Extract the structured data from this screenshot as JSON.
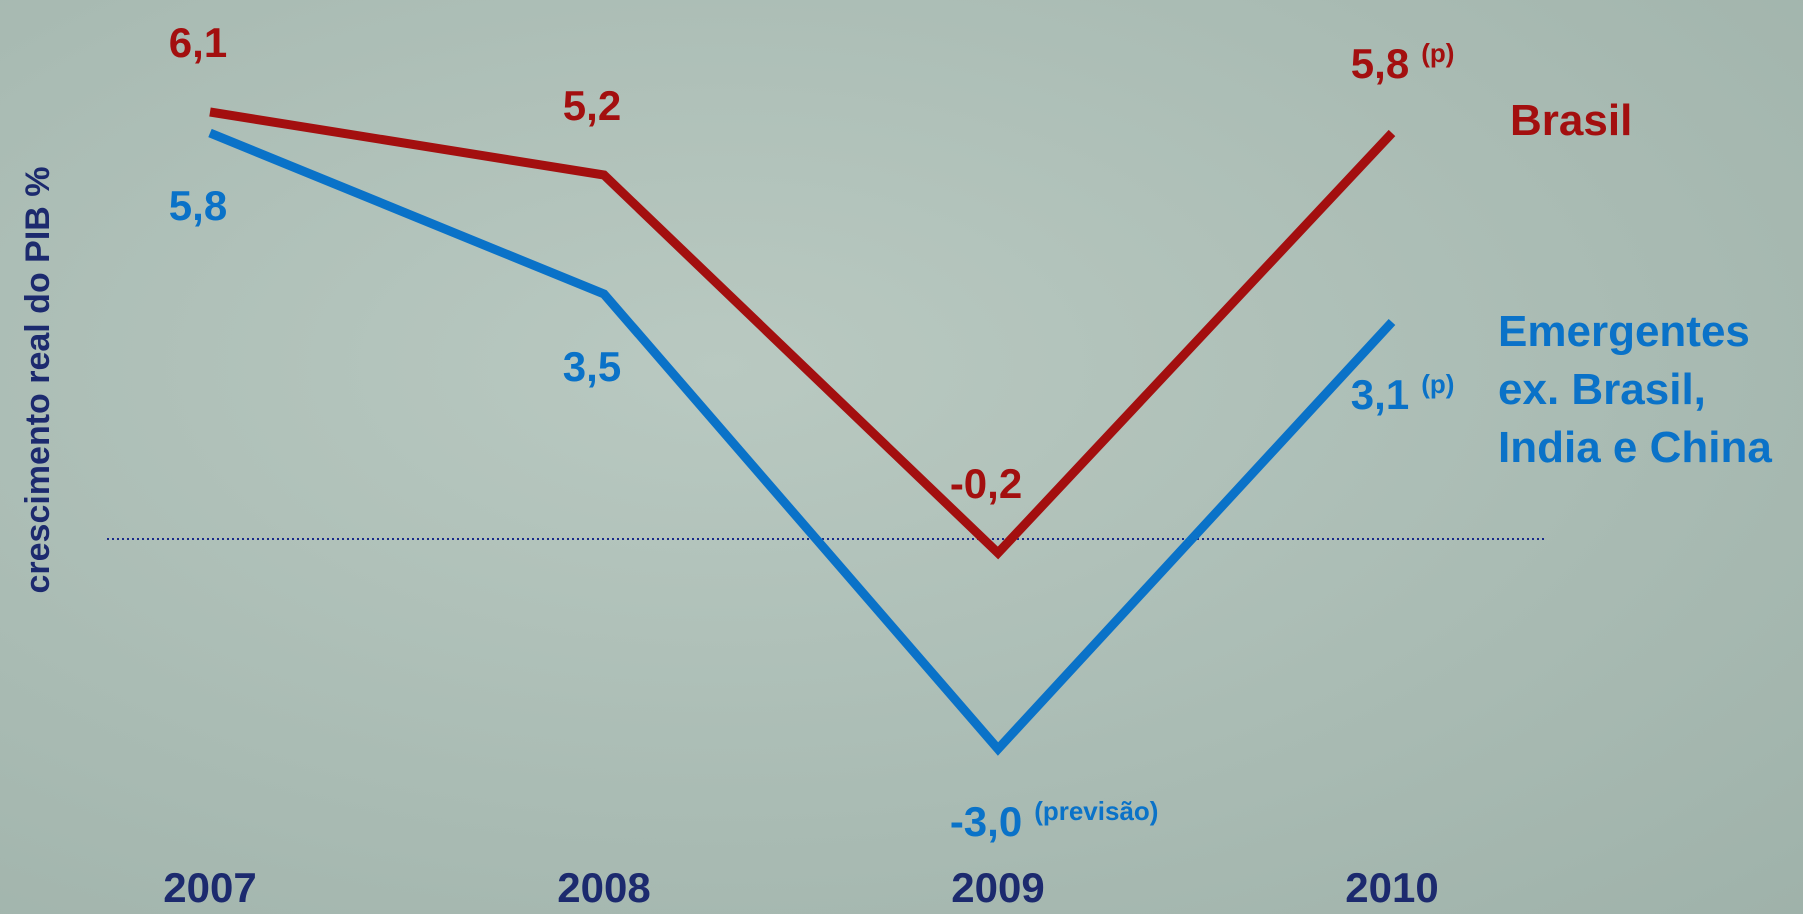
{
  "chart_data": {
    "type": "line",
    "y_label": "crescimento real do PIB %",
    "categories": [
      "2007",
      "2008",
      "2009",
      "2010"
    ],
    "series": [
      {
        "name": "Brasil",
        "color": "#a30f0f",
        "values": [
          6.1,
          5.2,
          -0.2,
          5.8
        ],
        "value_labels": [
          "6,1",
          "5,2",
          "-0,2",
          "5,8"
        ],
        "value_notes": [
          null,
          null,
          null,
          "(p)"
        ]
      },
      {
        "name": "Emergentes ex. Brasil, India e China",
        "color": "#0a72c8",
        "values": [
          5.8,
          3.5,
          -3.0,
          3.1
        ],
        "value_labels": [
          "5,8",
          "3,5",
          "-3,0",
          "3,1"
        ],
        "value_notes": [
          null,
          null,
          "(previsão)",
          "(p)"
        ]
      }
    ],
    "ylim": [
      -4,
      7
    ],
    "reference_line": 0
  }
}
